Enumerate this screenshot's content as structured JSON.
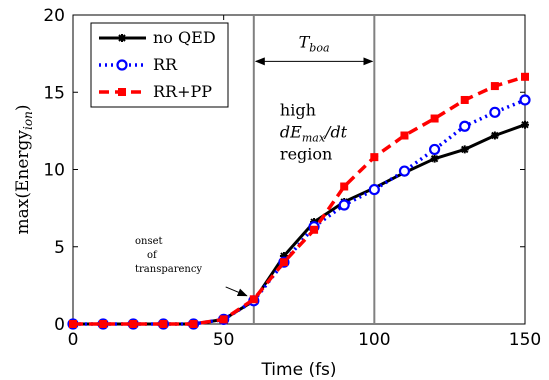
{
  "chart_data": {
    "type": "line",
    "xlabel": "Time (fs)",
    "ylabel": "max(Energy",
    "ylabel_sub": "ion",
    "ylabel_close": ")",
    "xlim": [
      0,
      150
    ],
    "ylim": [
      0,
      20
    ],
    "xticks": [
      "0",
      "50",
      "100",
      "150"
    ],
    "yticks": [
      "0",
      "5",
      "10",
      "15",
      "20"
    ],
    "grid": false,
    "legend_position": "top-left",
    "x": [
      0,
      10,
      20,
      30,
      40,
      50,
      60,
      70,
      80,
      90,
      100,
      110,
      120,
      130,
      140,
      150
    ],
    "series": [
      {
        "name": "no QED",
        "color": "#000000",
        "dash": "solid",
        "marker": "star",
        "values": [
          0,
          0,
          0,
          0,
          0,
          0.3,
          1.5,
          4.4,
          6.6,
          7.9,
          8.8,
          9.8,
          10.7,
          11.3,
          12.2,
          12.9
        ]
      },
      {
        "name": "RR",
        "color": "#0000ff",
        "dash": "dot",
        "marker": "circle",
        "values": [
          0,
          0,
          0,
          0,
          0,
          0.3,
          1.5,
          4.0,
          6.3,
          7.7,
          8.7,
          9.9,
          11.3,
          12.8,
          13.7,
          14.5
        ]
      },
      {
        "name": "RR+PP",
        "color": "#ff0000",
        "dash": "dash",
        "marker": "square",
        "values": [
          0,
          0,
          0,
          0,
          0,
          0.3,
          1.6,
          4.0,
          6.1,
          8.9,
          10.8,
          12.2,
          13.3,
          14.5,
          15.4,
          16.0
        ]
      }
    ],
    "vlines": [
      60,
      100
    ],
    "annotations": {
      "t_boa": {
        "base": "T",
        "sub": "boa",
        "from": 60,
        "to": 100,
        "y": 17
      },
      "region": {
        "line1": "high",
        "line2_d": "dE",
        "line2_sub": "max",
        "line2_rest": "/dt",
        "line3": "region",
        "x": 70,
        "y": 13.5
      },
      "onset": {
        "lines": [
          "onset",
          "of",
          "transparency"
        ],
        "arrow_from": [
          52,
          2.4
        ],
        "arrow_to": [
          59,
          1.7
        ]
      }
    }
  }
}
